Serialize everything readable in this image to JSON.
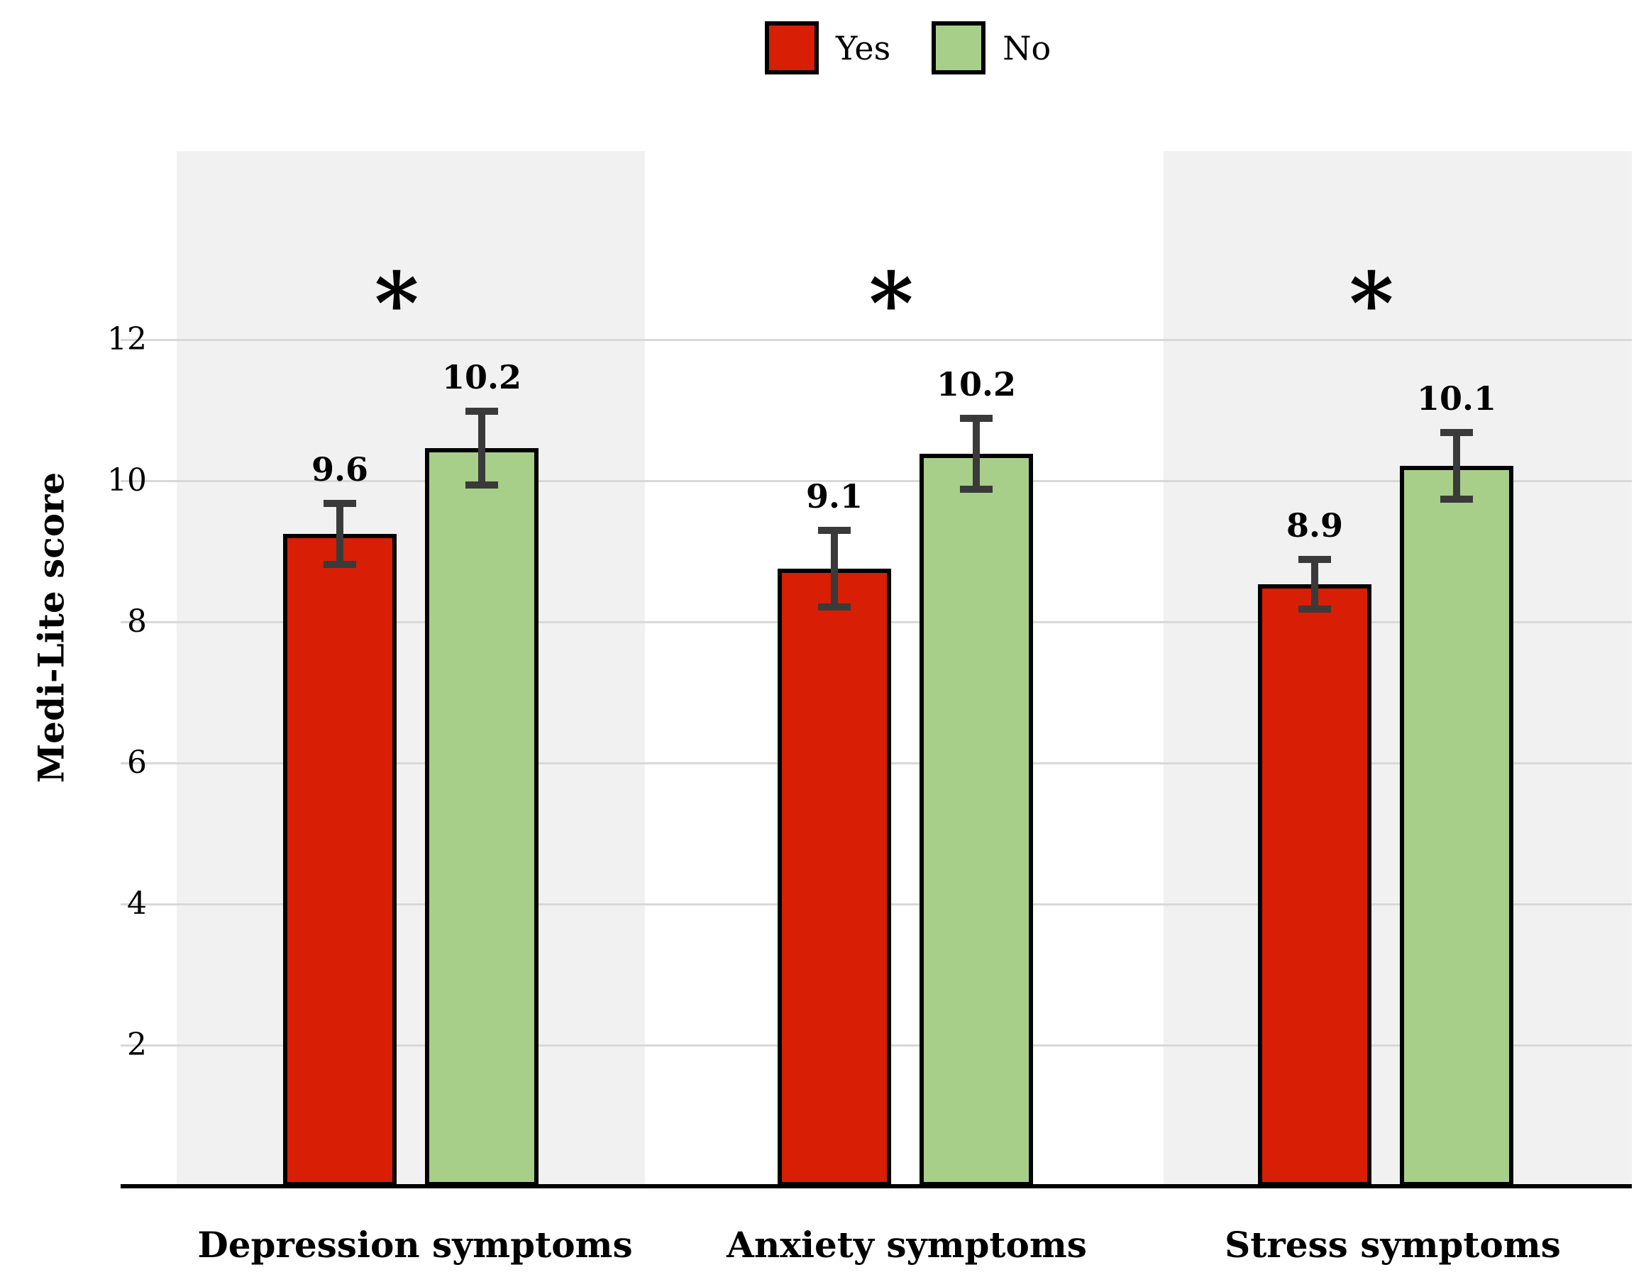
{
  "legend": {
    "items": [
      {
        "label": "Yes",
        "color": "#d81e04"
      },
      {
        "label": "No",
        "color": "#a8cf8a"
      }
    ]
  },
  "chart_data": {
    "type": "bar",
    "title": "",
    "xlabel": "",
    "ylabel": "Medi-Lite score",
    "categories": [
      "Depression symptoms",
      "Anxiety symptoms",
      "Stress symptoms"
    ],
    "series": [
      {
        "name": "Yes",
        "color": "#d81e04",
        "values": [
          9.6,
          9.1,
          8.9
        ],
        "errors": [
          0.48,
          0.59,
          0.4
        ],
        "bar_top_drawn": [
          9.25,
          8.75,
          8.53
        ]
      },
      {
        "name": "No",
        "color": "#a8cf8a",
        "values": [
          10.2,
          10.2,
          10.1
        ],
        "errors": [
          0.57,
          0.55,
          0.52
        ],
        "bar_top_drawn": [
          10.46,
          10.38,
          10.21
        ]
      }
    ],
    "significance_markers": [
      "*",
      "*",
      "*"
    ],
    "y_axis": {
      "ticks": [
        2,
        4,
        6,
        8,
        10,
        12
      ],
      "range_drawn": [
        0,
        14.7
      ],
      "gridlines": true
    },
    "legend_position": "top",
    "group_background_bands": [
      "#f1f1f1",
      "#ffffff",
      "#f1f1f1"
    ]
  },
  "colors": {
    "band_gray": "#f1f1f1",
    "gridline": "#d8d8d8",
    "error_bar": "#3a3a3a",
    "bar_border": "#000000",
    "axis_line": "#000000",
    "background": "#ffffff",
    "text": "#000000"
  }
}
